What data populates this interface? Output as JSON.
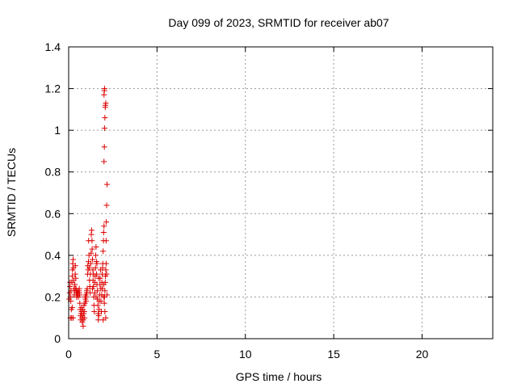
{
  "chart_data": {
    "type": "scatter",
    "title": "Day 099 of 2023, SRMTID for receiver ab07",
    "xlabel": "GPS time / hours",
    "ylabel": "SRMTID / TECUs",
    "xlim": [
      0,
      24
    ],
    "ylim": [
      0,
      1.4
    ],
    "xticks": [
      0,
      5,
      10,
      15,
      20
    ],
    "yticks": [
      0,
      0.2,
      0.4,
      0.6,
      0.8,
      1,
      1.2,
      1.4
    ],
    "xtick_labels": [
      "0",
      "5",
      "10",
      "15",
      "20"
    ],
    "ytick_labels": [
      "0",
      "0.2",
      "0.4",
      "0.6",
      "0.8",
      "1",
      "1.2",
      "1.4"
    ],
    "grid": true,
    "marker": "+",
    "color": "#dd0000",
    "series": [
      {
        "name": "ab07",
        "points": [
          [
            0.03,
            0.19
          ],
          [
            0.05,
            0.22
          ],
          [
            0.07,
            0.25
          ],
          [
            0.08,
            0.27
          ],
          [
            0.1,
            0.2
          ],
          [
            0.12,
            0.18
          ],
          [
            0.13,
            0.23
          ],
          [
            0.15,
            0.14
          ],
          [
            0.17,
            0.1
          ],
          [
            0.18,
            0.27
          ],
          [
            0.2,
            0.3
          ],
          [
            0.22,
            0.33
          ],
          [
            0.23,
            0.36
          ],
          [
            0.25,
            0.38
          ],
          [
            0.27,
            0.34
          ],
          [
            0.28,
            0.28
          ],
          [
            0.3,
            0.24
          ],
          [
            0.32,
            0.21
          ],
          [
            0.33,
            0.23
          ],
          [
            0.35,
            0.26
          ],
          [
            0.37,
            0.31
          ],
          [
            0.38,
            0.35
          ],
          [
            0.4,
            0.29
          ],
          [
            0.42,
            0.24
          ],
          [
            0.43,
            0.22
          ],
          [
            0.45,
            0.2
          ],
          [
            0.47,
            0.22
          ],
          [
            0.48,
            0.23
          ],
          [
            0.5,
            0.21
          ],
          [
            0.52,
            0.22
          ],
          [
            0.55,
            0.2
          ],
          [
            0.57,
            0.23
          ],
          [
            0.6,
            0.22
          ],
          [
            0.62,
            0.21
          ],
          [
            0.63,
            0.17
          ],
          [
            0.65,
            0.14
          ],
          [
            0.67,
            0.11
          ],
          [
            0.68,
            0.09
          ],
          [
            0.7,
            0.12
          ],
          [
            0.72,
            0.15
          ],
          [
            0.73,
            0.13
          ],
          [
            0.75,
            0.1
          ],
          [
            0.77,
            0.08
          ],
          [
            0.78,
            0.11
          ],
          [
            0.8,
            0.14
          ],
          [
            0.82,
            0.06
          ],
          [
            0.83,
            0.09
          ],
          [
            0.85,
            0.12
          ],
          [
            0.87,
            0.16
          ],
          [
            0.88,
            0.13
          ],
          [
            0.9,
            0.1
          ],
          [
            0.92,
            0.17
          ],
          [
            0.93,
            0.2
          ],
          [
            0.95,
            0.19
          ],
          [
            0.97,
            0.21
          ],
          [
            0.98,
            0.18
          ],
          [
            1.0,
            0.2
          ],
          [
            1.02,
            0.23
          ],
          [
            1.03,
            0.22
          ],
          [
            1.05,
            0.24
          ],
          [
            1.07,
            0.31
          ],
          [
            1.08,
            0.35
          ],
          [
            1.1,
            0.33
          ],
          [
            1.12,
            0.37
          ],
          [
            1.13,
            0.47
          ],
          [
            1.15,
            0.4
          ],
          [
            1.17,
            0.34
          ],
          [
            1.18,
            0.28
          ],
          [
            1.2,
            0.25
          ],
          [
            1.22,
            0.22
          ],
          [
            1.23,
            0.31
          ],
          [
            1.25,
            0.36
          ],
          [
            1.27,
            0.41
          ],
          [
            1.28,
            0.5
          ],
          [
            1.3,
            0.52
          ],
          [
            1.32,
            0.47
          ],
          [
            1.33,
            0.43
          ],
          [
            1.35,
            0.38
          ],
          [
            1.37,
            0.33
          ],
          [
            1.38,
            0.28
          ],
          [
            1.4,
            0.25
          ],
          [
            1.42,
            0.2
          ],
          [
            1.43,
            0.16
          ],
          [
            1.45,
            0.13
          ],
          [
            1.47,
            0.22
          ],
          [
            1.48,
            0.27
          ],
          [
            1.5,
            0.3
          ],
          [
            1.52,
            0.34
          ],
          [
            1.53,
            0.4
          ],
          [
            1.55,
            0.44
          ],
          [
            1.57,
            0.37
          ],
          [
            1.58,
            0.31
          ],
          [
            1.6,
            0.26
          ],
          [
            1.62,
            0.23
          ],
          [
            1.63,
            0.19
          ],
          [
            1.65,
            0.16
          ],
          [
            1.67,
            0.12
          ],
          [
            1.68,
            0.09
          ],
          [
            1.7,
            0.11
          ],
          [
            1.72,
            0.14
          ],
          [
            1.73,
            0.18
          ],
          [
            1.75,
            0.21
          ],
          [
            1.77,
            0.26
          ],
          [
            1.78,
            0.29
          ],
          [
            1.8,
            0.33
          ],
          [
            1.82,
            0.24
          ],
          [
            1.83,
            0.18
          ],
          [
            1.85,
            0.13
          ],
          [
            1.87,
            0.21
          ],
          [
            1.88,
            0.27
          ],
          [
            1.9,
            0.31
          ],
          [
            1.92,
            0.34
          ],
          [
            1.93,
            0.36
          ],
          [
            1.95,
            0.42
          ],
          [
            1.97,
            0.47
          ],
          [
            1.98,
            0.51
          ],
          [
            2.0,
            0.54
          ],
          [
            2.02,
            0.17
          ],
          [
            2.03,
            0.2
          ],
          [
            2.05,
            0.23
          ],
          [
            2.07,
            0.27
          ],
          [
            2.08,
            0.3
          ],
          [
            2.1,
            0.33
          ],
          [
            2.12,
            0.47
          ],
          [
            2.13,
            0.56
          ],
          [
            2.15,
            0.64
          ],
          [
            2.17,
            0.74
          ],
          [
            2.0,
            0.85
          ],
          [
            2.02,
            0.92
          ],
          [
            2.03,
            1.01
          ],
          [
            2.05,
            1.06
          ],
          [
            2.07,
            1.11
          ],
          [
            2.08,
            1.12
          ],
          [
            2.1,
            1.13
          ],
          [
            2.0,
            1.17
          ],
          [
            2.02,
            1.19
          ],
          [
            2.03,
            1.2
          ],
          [
            1.98,
            0.26
          ],
          [
            1.97,
            0.2
          ],
          [
            2.05,
            0.13
          ],
          [
            2.1,
            0.1
          ],
          [
            1.95,
            0.09
          ],
          [
            1.6,
            0.36
          ],
          [
            1.4,
            0.31
          ],
          [
            1.35,
            0.24
          ],
          [
            1.55,
            0.2
          ],
          [
            1.7,
            0.29
          ],
          [
            1.9,
            0.24
          ],
          [
            2.12,
            0.36
          ],
          [
            2.15,
            0.31
          ],
          [
            2.17,
            0.21
          ],
          [
            0.6,
            0.24
          ],
          [
            0.4,
            0.24
          ],
          [
            0.2,
            0.15
          ],
          [
            0.1,
            0.1
          ],
          [
            0.25,
            0.1
          ]
        ]
      }
    ]
  }
}
